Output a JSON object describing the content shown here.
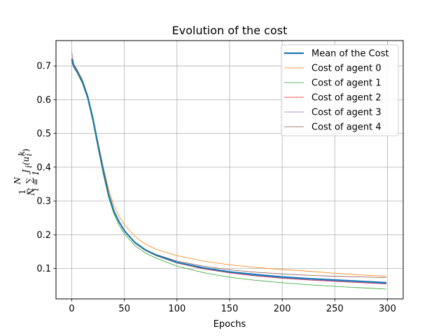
{
  "chart_data": {
    "type": "line",
    "title": "Evolution of the cost",
    "xlabel": "Epochs",
    "ylabel_parts": {
      "frac_num": "1",
      "frac_den": "N",
      "sum_top": "N",
      "sum_symbol": "∑",
      "sum_bottom": "i = 1",
      "term": "J",
      "term_sub": "i",
      "arg": "(u",
      "arg_sub": "i",
      "arg_sup": "k",
      "arg_close": ")"
    },
    "xlim": [
      -15,
      315
    ],
    "ylim": [
      0.01,
      0.775
    ],
    "xticks": [
      0,
      50,
      100,
      150,
      200,
      250,
      300
    ],
    "yticks": [
      0.1,
      0.2,
      0.3,
      0.4,
      0.5,
      0.6,
      0.7
    ],
    "grid": true,
    "legend_position": "upper right",
    "series": [
      {
        "name": "Mean of the Cost",
        "color": "#1f77b4",
        "width": 2.2,
        "x": [
          0,
          2,
          5,
          10,
          15,
          20,
          25,
          30,
          35,
          40,
          45,
          50,
          60,
          70,
          80,
          100,
          125,
          150,
          175,
          200,
          225,
          250,
          275,
          299
        ],
        "y": [
          0.72,
          0.7,
          0.685,
          0.655,
          0.61,
          0.545,
          0.465,
          0.39,
          0.32,
          0.27,
          0.238,
          0.212,
          0.177,
          0.155,
          0.14,
          0.118,
          0.102,
          0.09,
          0.082,
          0.075,
          0.07,
          0.066,
          0.062,
          0.058
        ]
      },
      {
        "name": "Cost of agent 0",
        "color": "#ff7f0e",
        "width": 0.8,
        "x": [
          0,
          2,
          5,
          10,
          15,
          20,
          25,
          30,
          35,
          40,
          45,
          50,
          60,
          70,
          80,
          100,
          125,
          150,
          175,
          200,
          225,
          250,
          275,
          299
        ],
        "y": [
          0.725,
          0.705,
          0.69,
          0.66,
          0.615,
          0.55,
          0.475,
          0.4,
          0.335,
          0.287,
          0.255,
          0.23,
          0.195,
          0.172,
          0.157,
          0.138,
          0.122,
          0.111,
          0.103,
          0.097,
          0.092,
          0.086,
          0.081,
          0.077
        ]
      },
      {
        "name": "Cost of agent 1",
        "color": "#2ca02c",
        "width": 0.8,
        "x": [
          0,
          2,
          5,
          10,
          15,
          20,
          25,
          30,
          35,
          40,
          45,
          50,
          60,
          70,
          80,
          100,
          125,
          150,
          175,
          200,
          225,
          250,
          275,
          299
        ],
        "y": [
          0.715,
          0.695,
          0.68,
          0.648,
          0.603,
          0.535,
          0.455,
          0.378,
          0.31,
          0.262,
          0.228,
          0.203,
          0.168,
          0.146,
          0.131,
          0.107,
          0.088,
          0.074,
          0.065,
          0.058,
          0.052,
          0.047,
          0.043,
          0.039
        ]
      },
      {
        "name": "Cost of agent 2",
        "color": "#d62728",
        "width": 0.8,
        "x": [
          0,
          2,
          5,
          10,
          15,
          20,
          25,
          30,
          35,
          40,
          45,
          50,
          60,
          70,
          80,
          100,
          125,
          150,
          175,
          200,
          225,
          250,
          275,
          299
        ],
        "y": [
          0.72,
          0.7,
          0.685,
          0.655,
          0.61,
          0.545,
          0.465,
          0.388,
          0.318,
          0.268,
          0.236,
          0.21,
          0.175,
          0.153,
          0.138,
          0.116,
          0.099,
          0.087,
          0.078,
          0.071,
          0.066,
          0.062,
          0.058,
          0.054
        ]
      },
      {
        "name": "Cost of agent 3",
        "color": "#9467bd",
        "width": 0.8,
        "x": [
          0,
          2,
          5,
          10,
          15,
          20,
          25,
          30,
          35,
          40,
          45,
          50,
          60,
          70,
          80,
          100,
          125,
          150,
          175,
          200,
          225,
          250,
          275,
          299
        ],
        "y": [
          0.74,
          0.705,
          0.688,
          0.656,
          0.611,
          0.546,
          0.466,
          0.389,
          0.319,
          0.269,
          0.237,
          0.211,
          0.176,
          0.154,
          0.139,
          0.117,
          0.1,
          0.088,
          0.079,
          0.072,
          0.067,
          0.063,
          0.059,
          0.055
        ]
      },
      {
        "name": "Cost of agent 4",
        "color": "#8c564b",
        "width": 0.8,
        "x": [
          0,
          2,
          5,
          10,
          15,
          20,
          25,
          30,
          35,
          40,
          45,
          50,
          60,
          70,
          80,
          100,
          125,
          150,
          175,
          200,
          225,
          250,
          275,
          299
        ],
        "y": [
          0.71,
          0.695,
          0.68,
          0.652,
          0.607,
          0.542,
          0.462,
          0.386,
          0.317,
          0.268,
          0.237,
          0.212,
          0.178,
          0.156,
          0.142,
          0.122,
          0.107,
          0.096,
          0.089,
          0.084,
          0.08,
          0.077,
          0.075,
          0.073
        ]
      }
    ]
  }
}
